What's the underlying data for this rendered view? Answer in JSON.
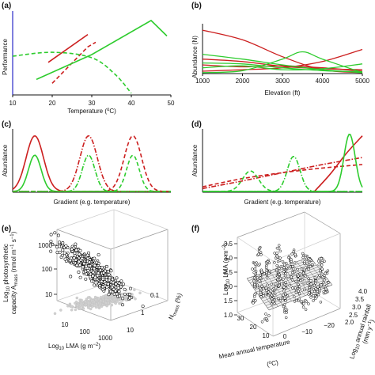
{
  "colors": {
    "red": "#cc1f1f",
    "green": "#2ecc2e",
    "axis": "#111111",
    "blue_axis": "#3a3acc",
    "grey": "#c8c8c8",
    "black": "#000000"
  },
  "panels": {
    "a": {
      "label": "(a)"
    },
    "b": {
      "label": "(b)"
    },
    "c": {
      "label": "(c)"
    },
    "d": {
      "label": "(d)"
    },
    "e": {
      "label": "(e)"
    },
    "f": {
      "label": "(f)"
    }
  },
  "chart_data": [
    {
      "panel": "a",
      "type": "line",
      "xlabel_main": "Temperature (",
      "xlabel_sup": "o",
      "xlabel_end": "C)",
      "ylabel": "Performance",
      "xlim": [
        10,
        50
      ],
      "xticks": [
        "10",
        "20",
        "30",
        "40",
        "50"
      ],
      "series": [
        {
          "color": "red",
          "style": "solid",
          "x": [
            19,
            29
          ],
          "y": [
            0.42,
            0.78
          ]
        },
        {
          "color": "red",
          "style": "dashed",
          "x": [
            20,
            29,
            31
          ],
          "y": [
            0.15,
            0.62,
            0.68
          ]
        },
        {
          "color": "green",
          "style": "solid",
          "x": [
            16,
            30,
            45,
            49
          ],
          "y": [
            0.2,
            0.52,
            0.96,
            0.76
          ]
        },
        {
          "color": "green",
          "style": "dashed",
          "x": [
            10,
            20,
            30,
            36,
            40
          ],
          "y": [
            0.5,
            0.55,
            0.48,
            0.26,
            0.02
          ]
        }
      ]
    },
    {
      "panel": "b",
      "type": "line",
      "xlabel": "Elevation (ft)",
      "ylabel": "Abundance (N)",
      "xlim": [
        1000,
        5000
      ],
      "xticks": [
        "1000",
        "2000",
        "3000",
        "4000",
        "5000"
      ],
      "series": [
        {
          "color": "red",
          "x": [
            1000,
            2000,
            3000,
            4000,
            5000
          ],
          "y": [
            0.9,
            0.7,
            0.35,
            0.08,
            0.02
          ]
        },
        {
          "color": "red",
          "x": [
            1000,
            2000,
            3000,
            4000,
            5000
          ],
          "y": [
            0.05,
            0.08,
            0.12,
            0.25,
            0.5
          ]
        },
        {
          "color": "red",
          "x": [
            1000,
            2000,
            3000,
            4000,
            5000
          ],
          "y": [
            0.3,
            0.25,
            0.15,
            0.1,
            0.08
          ]
        },
        {
          "color": "red",
          "x": [
            1000,
            2000,
            3000,
            4000,
            5000
          ],
          "y": [
            0.18,
            0.14,
            0.16,
            0.12,
            0.05
          ]
        },
        {
          "color": "green",
          "x": [
            1000,
            2000,
            3000,
            3500,
            4000,
            5000
          ],
          "y": [
            0.02,
            0.06,
            0.3,
            0.45,
            0.3,
            0.02
          ]
        },
        {
          "color": "green",
          "x": [
            1000,
            2000,
            3000,
            4000,
            5000
          ],
          "y": [
            0.4,
            0.3,
            0.18,
            0.08,
            0.02
          ]
        },
        {
          "color": "green",
          "x": [
            1000,
            2000,
            3000,
            4000,
            5000
          ],
          "y": [
            0.12,
            0.16,
            0.08,
            0.1,
            0.2
          ]
        },
        {
          "color": "green",
          "x": [
            1000,
            2000,
            3000,
            4000,
            5000
          ],
          "y": [
            0.22,
            0.2,
            0.12,
            0.06,
            0.04
          ]
        }
      ]
    },
    {
      "panel": "c",
      "type": "line",
      "xlabel": "Gradient (e.g. temperature)",
      "ylabel": "Abundance",
      "series": [
        {
          "color": "red",
          "style": "solid",
          "center": 0.14,
          "width": 0.055,
          "height": 0.95
        },
        {
          "color": "green",
          "style": "solid",
          "center": 0.14,
          "width": 0.04,
          "height": 0.62
        },
        {
          "color": "red",
          "style": "dashdot",
          "center": 0.48,
          "width": 0.055,
          "height": 0.95
        },
        {
          "color": "green",
          "style": "dashdot",
          "center": 0.48,
          "width": 0.04,
          "height": 0.62
        },
        {
          "color": "red",
          "style": "dashed",
          "center": 0.76,
          "width": 0.055,
          "height": 0.95
        },
        {
          "color": "green",
          "style": "dashed",
          "center": 0.76,
          "width": 0.04,
          "height": 0.62
        }
      ]
    },
    {
      "panel": "d",
      "type": "line",
      "xlabel": "Gradient (e.g. temperature)",
      "ylabel": "Abundance",
      "series": [
        {
          "color": "red",
          "style": "dashed",
          "x": [
            0,
            0.25,
            0.5,
            0.75,
            1
          ],
          "y": [
            0.08,
            0.22,
            0.32,
            0.4,
            0.46
          ]
        },
        {
          "color": "red",
          "style": "dashdot",
          "x": [
            0,
            0.25,
            0.5,
            0.75,
            1
          ],
          "y": [
            0.05,
            0.18,
            0.32,
            0.46,
            0.58
          ]
        },
        {
          "color": "green",
          "style": "dashed",
          "center": 0.3,
          "width": 0.05,
          "height": 0.35
        },
        {
          "color": "green",
          "style": "dashdot",
          "center": 0.57,
          "width": 0.04,
          "height": 0.6
        },
        {
          "color": "red",
          "style": "solid",
          "x": [
            0.7,
            0.8,
            0.9,
            1.0
          ],
          "y": [
            0,
            0.3,
            0.65,
            0.95
          ]
        },
        {
          "color": "green",
          "style": "solid",
          "center": 0.92,
          "width": 0.035,
          "height": 0.98
        }
      ]
    },
    {
      "panel": "e",
      "type": "scatter",
      "xlabel": "Log",
      "xlabel_sub": "10",
      "xlabel_rest": " LMA (g m",
      "xlabel_sup": "−2",
      "xlabel_end": ")",
      "ylabel_line1": "Log",
      "ylabel_line1_sub": "10",
      "ylabel_line1_rest": " photosynthetic",
      "ylabel_line2": "capacity A",
      "ylabel_line2_sub": "mass",
      "ylabel_line2_rest": " (nmol m",
      "ylabel_line2_sup": "−1",
      "ylabel_line2_end": " s",
      "ylabel_line2_sup2": "−1",
      "ylabel_line2_close": ")",
      "zlabel": "N",
      "zlabel_sub": "mass",
      "zlabel_rest": " (%)",
      "yticks": [
        "1000",
        "100",
        "10"
      ],
      "xticks": [
        "10",
        "100",
        "1000"
      ],
      "zticks": [
        "0.1",
        "1",
        "10"
      ],
      "cluster_main": {
        "x": [
          1.6,
          2.2,
          2.8
        ],
        "y": [
          0.8,
          1.9,
          2.8
        ]
      },
      "cluster_shadow": {
        "x": [
          1.6,
          2.8
        ],
        "y": [
          0.0,
          0.0
        ]
      }
    },
    {
      "panel": "f",
      "type": "scatter",
      "ylabel": "Log",
      "ylabel_sub": "10",
      "ylabel_rest": " LMA (g m",
      "ylabel_sup": "−2",
      "ylabel_end": ")",
      "xlabel_line1": "Mean annual temperature",
      "xlabel_line2_pre": "(",
      "xlabel_line2_sup": "o",
      "xlabel_line2_end": "C)",
      "zlabel": "Log",
      "zlabel_sub": "10",
      "zlabel_rest": " annual rainfall",
      "zlabel_line2": "(mm y",
      "zlabel_line2_sup": "−1",
      "zlabel_line2_end": ")",
      "yticks": [
        "3.5",
        "3.0",
        "2.5",
        "2.0",
        "1.5",
        "1.0"
      ],
      "xticks": [
        "30",
        "20",
        "10",
        "0",
        "−10",
        "−20"
      ],
      "zticks": [
        "2.0",
        "2.5",
        "3.0",
        "3.5",
        "4.0"
      ]
    }
  ]
}
